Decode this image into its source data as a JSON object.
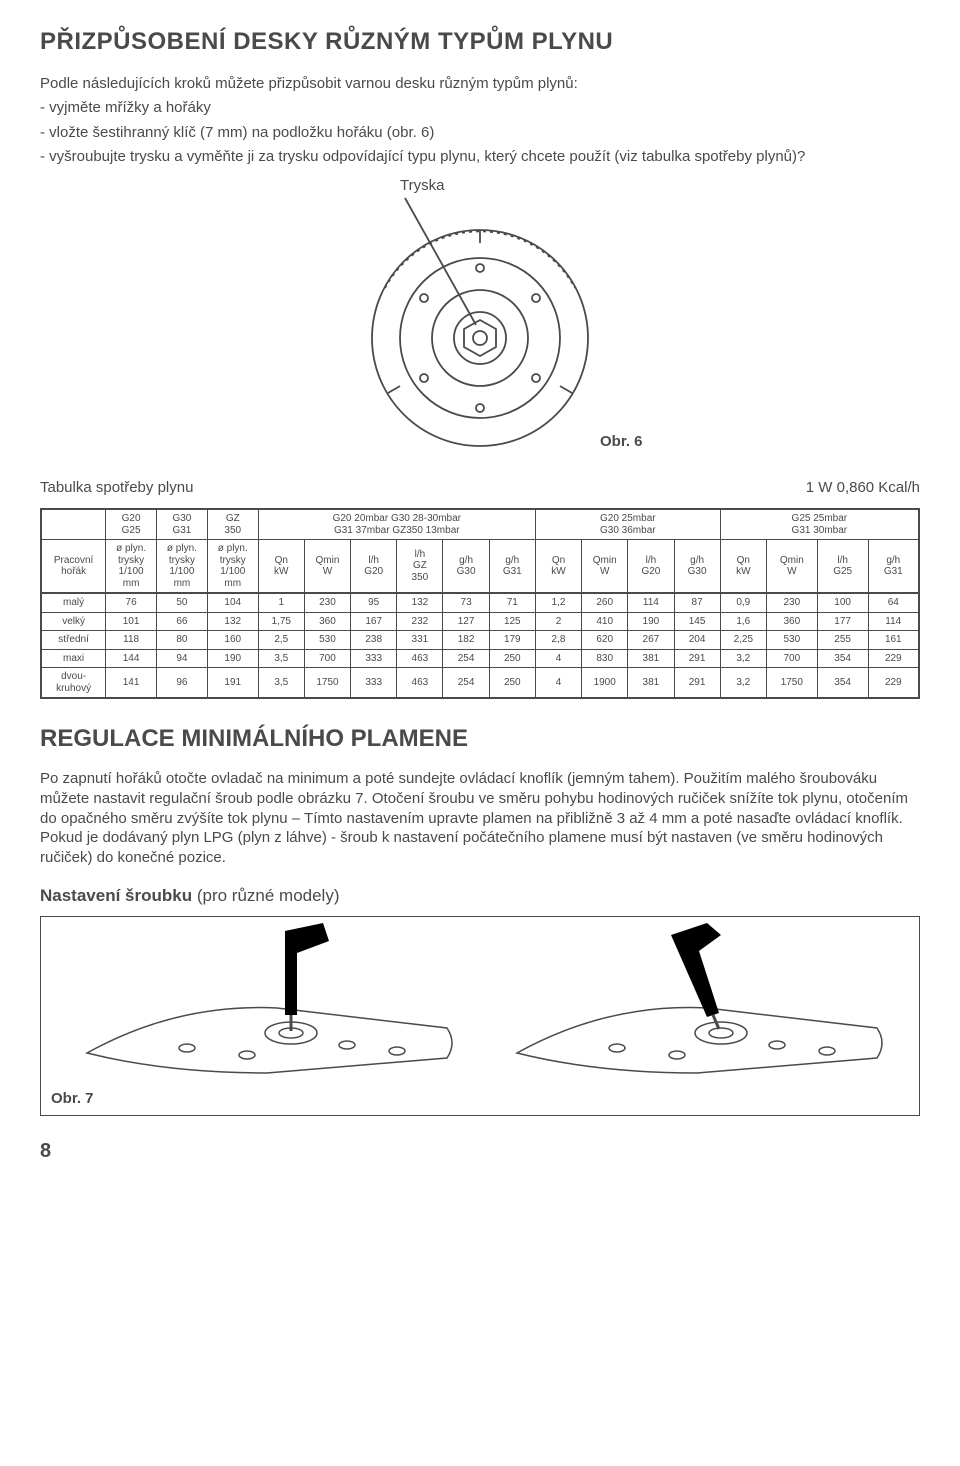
{
  "title1": "PŘIZPŮSOBENÍ DESKY RŮZNÝM TYPŮM PLYNU",
  "intro_p": "Podle následujících kroků můžete přizpůsobit varnou desku různým typům plynů:",
  "intro_b1": "- vyjměte mřížky a hořáky",
  "intro_b2": "- vložte šestihranný klíč (7 mm) na podložku hořáku (obr. 6)",
  "intro_b3": "- vyšroubujte trysku a vyměňte ji za trysku odpovídající typu plynu, který chcete použít (viz tabulka spotřeby plynů)?",
  "tryska": "Tryska",
  "obr6": "Obr. 6",
  "table_caption_left": "Tabulka spotřeby plynu",
  "table_caption_right": "1 W 0,860 Kcal/h",
  "table": {
    "grp1": [
      "G20",
      "G25"
    ],
    "grp2": [
      "G30",
      "G31"
    ],
    "grp3": [
      "GZ",
      "350"
    ],
    "grp4": [
      "G20 20mbar G30 28-30mbar",
      "G31 37mbar GZ350 13mbar"
    ],
    "grp5": [
      "G20 25mbar",
      "G30 36mbar"
    ],
    "grp6": [
      "G25 25mbar",
      "G31 30mbar"
    ],
    "h_row": [
      "Pracovní\nhořák",
      "ø plyn.\ntrysky\n1/100\nmm",
      "ø plyn.\ntrysky\n1/100\nmm",
      "ø plyn.\ntrysky\n1/100\nmm",
      "Qn\nkW",
      "Qmin\nW",
      "l/h\nG20",
      "l/h\nGZ\n350",
      "g/h\nG30",
      "g/h\nG31",
      "Qn\nkW",
      "Qmin\nW",
      "l/h\nG20",
      "g/h\nG30",
      "Qn\nkW",
      "Qmin\nW",
      "l/h\nG25",
      "g/h\nG31"
    ],
    "rows": [
      [
        "malý",
        "76",
        "50",
        "104",
        "1",
        "230",
        "95",
        "132",
        "73",
        "71",
        "1,2",
        "260",
        "114",
        "87",
        "0,9",
        "230",
        "100",
        "64"
      ],
      [
        "velký",
        "101",
        "66",
        "132",
        "1,75",
        "360",
        "167",
        "232",
        "127",
        "125",
        "2",
        "410",
        "190",
        "145",
        "1,6",
        "360",
        "177",
        "114"
      ],
      [
        "střední",
        "118",
        "80",
        "160",
        "2,5",
        "530",
        "238",
        "331",
        "182",
        "179",
        "2,8",
        "620",
        "267",
        "204",
        "2,25",
        "530",
        "255",
        "161"
      ],
      [
        "maxi",
        "144",
        "94",
        "190",
        "3,5",
        "700",
        "333",
        "463",
        "254",
        "250",
        "4",
        "830",
        "381",
        "291",
        "3,2",
        "700",
        "354",
        "229"
      ],
      [
        "dvou-\nkruhový",
        "141",
        "96",
        "191",
        "3,5",
        "1750",
        "333",
        "463",
        "254",
        "250",
        "4",
        "1900",
        "381",
        "291",
        "3,2",
        "1750",
        "354",
        "229"
      ]
    ]
  },
  "title2": "REGULACE MINIMÁLNÍHO PLAMENE",
  "para2": "Po zapnutí hořáků otočte ovladač na minimum a poté sundejte ovládací knoflík (jemným tahem). Použitím malého šroubováku můžete nastavit regulační šroub podle obrázku 7. Otočení šroubu ve směru pohybu hodinových ručiček snížíte tok plynu, otočením do opačného směru zvýšíte tok plynu – Tímto nastavením upravte plamen na přibližně 3 až 4 mm a poté nasaďte ovládací knoflík. Pokud je dodávaný plyn LPG (plyn z láhve) - šroub k nastavení počátečního plamene musí být nastaven (ve směru hodinových ručiček) do konečné pozice.",
  "subhead_bold": "Nastavení šroubku",
  "subhead_rest": " (pro různé modely)",
  "obr7": "Obr. 7",
  "page_num": "8",
  "colors": {
    "text": "#4a4a4a",
    "line": "#4a4a4a",
    "bg": "#ffffff",
    "black": "#000000"
  }
}
